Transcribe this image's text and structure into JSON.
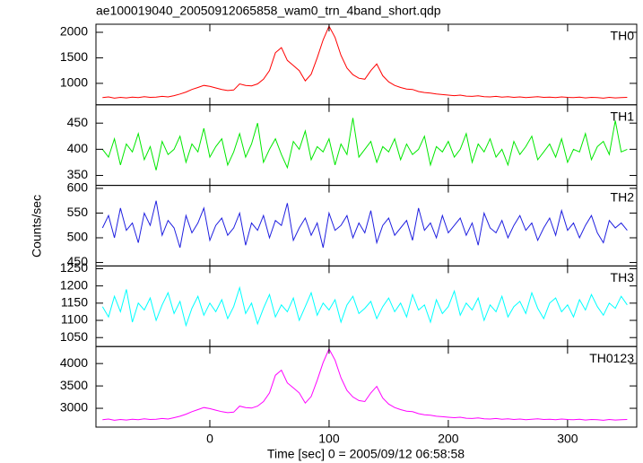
{
  "chart_data": {
    "type": "line",
    "title": "ae100019040_20050912065858_wam0_trn_4band_short.qdp",
    "xlabel": "Time [sec] 0 = 2005/09/12 06:58:58",
    "ylabel": "Counts/sec",
    "xlim": [
      -95.5,
      358
    ],
    "xticks": [
      0,
      100,
      200,
      300
    ],
    "x": [
      -90,
      -85,
      -80,
      -75,
      -70,
      -65,
      -60,
      -55,
      -50,
      -45,
      -40,
      -35,
      -30,
      -25,
      -20,
      -15,
      -10,
      -5,
      0,
      5,
      10,
      15,
      20,
      25,
      30,
      35,
      40,
      45,
      50,
      55,
      60,
      65,
      70,
      75,
      80,
      85,
      90,
      95,
      100,
      105,
      110,
      115,
      120,
      125,
      130,
      135,
      140,
      145,
      150,
      155,
      160,
      165,
      170,
      175,
      180,
      185,
      190,
      195,
      200,
      205,
      210,
      215,
      220,
      225,
      230,
      235,
      240,
      245,
      250,
      255,
      260,
      265,
      270,
      275,
      280,
      285,
      290,
      295,
      300,
      305,
      310,
      315,
      320,
      325,
      330,
      335,
      340,
      345,
      350
    ],
    "series": [
      {
        "name": "TH0",
        "color": "#ff0000",
        "ylim": [
          580,
          2158
        ],
        "yticks": [
          1000,
          1500,
          2000
        ],
        "values": [
          720,
          735,
          710,
          725,
          715,
          730,
          720,
          740,
          725,
          730,
          745,
          735,
          760,
          790,
          830,
          880,
          920,
          960,
          940,
          910,
          880,
          860,
          870,
          990,
          960,
          950,
          990,
          1080,
          1250,
          1600,
          1700,
          1450,
          1350,
          1250,
          1050,
          1180,
          1500,
          1850,
          2120,
          1900,
          1550,
          1300,
          1170,
          1100,
          1080,
          1250,
          1380,
          1150,
          1030,
          960,
          920,
          890,
          880,
          840,
          820,
          810,
          790,
          780,
          770,
          760,
          770,
          750,
          745,
          755,
          740,
          735,
          745,
          730,
          740,
          725,
          735,
          720,
          730,
          740,
          725,
          730,
          720,
          735,
          725,
          720,
          730,
          715,
          725,
          720,
          710,
          725,
          715,
          720,
          725
        ]
      },
      {
        "name": "TH1",
        "color": "#00e800",
        "ylim": [
          331,
          485
        ],
        "yticks": [
          350,
          400,
          450
        ],
        "values": [
          400,
          385,
          420,
          370,
          410,
          395,
          430,
          380,
          405,
          360,
          415,
          390,
          400,
          425,
          375,
          410,
          395,
          440,
          385,
          405,
          420,
          370,
          395,
          430,
          385,
          410,
          450,
          375,
          400,
          420,
          390,
          365,
          415,
          400,
          435,
          380,
          405,
          395,
          420,
          370,
          410,
          390,
          460,
          385,
          400,
          415,
          375,
          405,
          395,
          420,
          380,
          410,
          390,
          400,
          425,
          370,
          405,
          395,
          415,
          385,
          400,
          430,
          375,
          410,
          395,
          420,
          385,
          400,
          370,
          415,
          390,
          405,
          425,
          380,
          395,
          410,
          385,
          420,
          375,
          400,
          395,
          430,
          380,
          405,
          415,
          390,
          455,
          395,
          400
        ]
      },
      {
        "name": "TH2",
        "color": "#2020e0",
        "ylim": [
          443,
          606
        ],
        "yticks": [
          450,
          500,
          550,
          600
        ],
        "values": [
          520,
          545,
          500,
          560,
          515,
          530,
          490,
          550,
          525,
          575,
          505,
          535,
          520,
          480,
          545,
          510,
          530,
          560,
          495,
          525,
          540,
          505,
          520,
          550,
          485,
          530,
          515,
          545,
          500,
          535,
          525,
          570,
          495,
          520,
          540,
          505,
          530,
          480,
          550,
          515,
          525,
          545,
          500,
          530,
          510,
          555,
          490,
          525,
          540,
          505,
          520,
          535,
          495,
          560,
          515,
          530,
          500,
          545,
          510,
          525,
          540,
          505,
          530,
          485,
          550,
          520,
          510,
          535,
          500,
          525,
          545,
          515,
          530,
          495,
          520,
          540,
          505,
          555,
          515,
          530,
          500,
          525,
          545,
          510,
          490,
          535,
          520,
          530,
          515
        ]
      },
      {
        "name": "TH3",
        "color": "#00ffff",
        "ylim": [
          1024,
          1258
        ],
        "yticks": [
          1050,
          1100,
          1150,
          1200,
          1250
        ],
        "values": [
          1140,
          1110,
          1170,
          1125,
          1190,
          1095,
          1150,
          1130,
          1165,
          1100,
          1145,
          1180,
          1120,
          1155,
          1085,
          1135,
          1170,
          1115,
          1150,
          1125,
          1160,
          1105,
          1140,
          1195,
          1120,
          1150,
          1090,
          1135,
          1175,
          1110,
          1145,
          1125,
          1165,
          1100,
          1140,
          1180,
          1115,
          1150,
          1130,
          1160,
          1095,
          1145,
          1170,
          1120,
          1135,
          1155,
          1105,
          1140,
          1165,
          1125,
          1150,
          1110,
          1175,
          1130,
          1145,
          1095,
          1160,
          1120,
          1140,
          1185,
          1115,
          1150,
          1130,
          1165,
          1100,
          1145,
          1125,
          1170,
          1110,
          1140,
          1155,
          1120,
          1180,
          1135,
          1105,
          1150,
          1165,
          1125,
          1145,
          1110,
          1160,
          1130,
          1175,
          1140,
          1115,
          1150,
          1135,
          1170,
          1145
        ]
      },
      {
        "name": "TH0123",
        "color": "#ff00ff",
        "ylim": [
          2580,
          4380
        ],
        "yticks": [
          3000,
          3500,
          4000
        ],
        "values": [
          2744,
          2761,
          2733,
          2750,
          2739,
          2756,
          2744,
          2767,
          2750,
          2756,
          2773,
          2761,
          2790,
          2823,
          2869,
          2925,
          2970,
          3016,
          2993,
          2959,
          2925,
          2903,
          2914,
          3049,
          3016,
          3004,
          3049,
          3151,
          3343,
          3739,
          3852,
          3569,
          3456,
          3343,
          3117,
          3264,
          3626,
          4021,
          4326,
          4078,
          3682,
          3400,
          3253,
          3174,
          3151,
          3343,
          3490,
          3230,
          3095,
          3016,
          2970,
          2936,
          2925,
          2880,
          2857,
          2846,
          2823,
          2812,
          2801,
          2790,
          2801,
          2778,
          2773,
          2784,
          2767,
          2761,
          2773,
          2756,
          2767,
          2750,
          2761,
          2744,
          2756,
          2767,
          2750,
          2756,
          2744,
          2761,
          2750,
          2744,
          2756,
          2739,
          2750,
          2744,
          2733,
          2750,
          2739,
          2744,
          2750
        ]
      }
    ]
  }
}
